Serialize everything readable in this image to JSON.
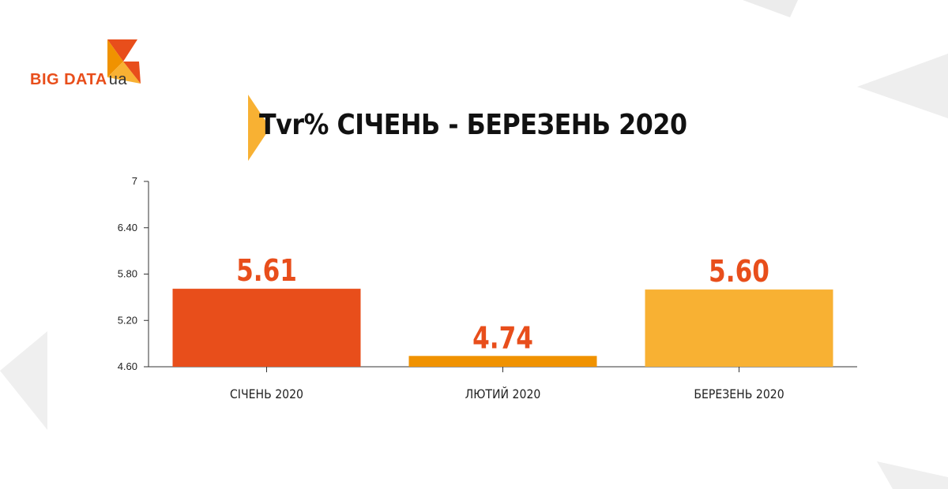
{
  "logo": {
    "text": "BIG DATA",
    "suffix": "ua"
  },
  "colors": {
    "bar1": "#e84e1b",
    "bar2": "#f09200",
    "bar3": "#f8b133",
    "value_label": "#e84e1b",
    "axis": "#333333"
  },
  "chart_data": {
    "type": "bar",
    "title": "Tvr% СІЧЕНЬ - БЕРЕЗЕНЬ 2020",
    "categories": [
      "СІЧЕНЬ 2020",
      "ЛЮТИЙ 2020",
      "БЕРЕЗЕНЬ 2020"
    ],
    "values": [
      5.61,
      4.74,
      5.6
    ],
    "value_labels": [
      "5.61",
      "4.74",
      "5.60"
    ],
    "ylim": [
      4.6,
      7
    ],
    "yticks": [
      4.6,
      5.2,
      5.8,
      6.4,
      7
    ],
    "ytick_labels": [
      "4.60",
      "5.20",
      "5.80",
      "6.40",
      "7"
    ],
    "xlabel": "",
    "ylabel": "",
    "grid": false,
    "legend": "none"
  }
}
